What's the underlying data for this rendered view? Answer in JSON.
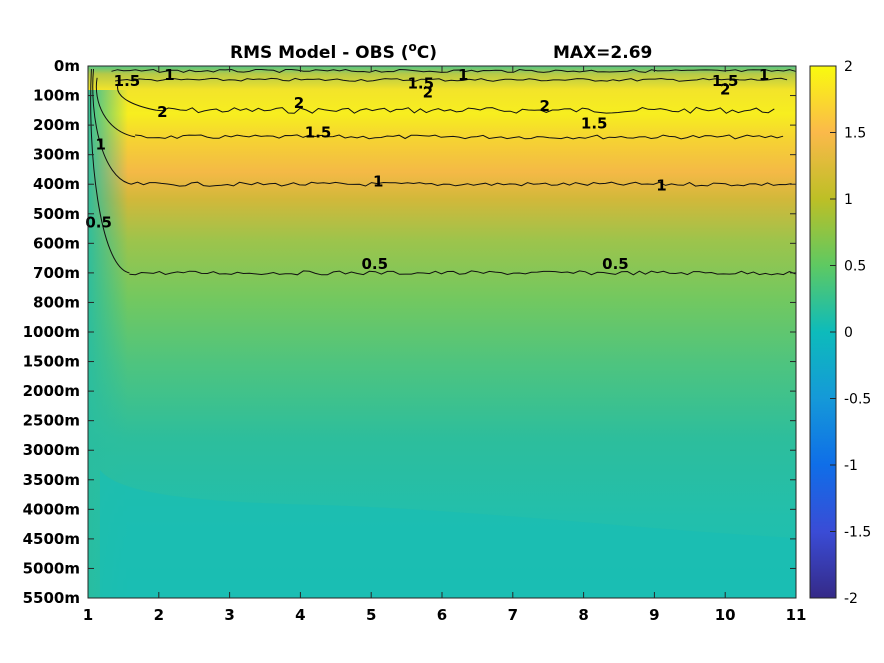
{
  "chart_data": {
    "type": "heatmap",
    "title": "RMS Model - OBS (",
    "title_unit_sup": "o",
    "title_unit": "C)",
    "title_max": "MAX=2.69",
    "x_ticks": [
      "1",
      "2",
      "3",
      "4",
      "5",
      "6",
      "7",
      "8",
      "9",
      "10",
      "11"
    ],
    "xlim": [
      1,
      11
    ],
    "y_ticks": [
      "0m",
      "100m",
      "200m",
      "300m",
      "400m",
      "500m",
      "600m",
      "700m",
      "800m",
      "1000m",
      "1500m",
      "2000m",
      "2500m",
      "3000m",
      "3500m",
      "4000m",
      "4500m",
      "5000m",
      "5500m"
    ],
    "colorbar": {
      "ticks": [
        "2",
        "1.5",
        "1",
        "0.5",
        "0",
        "-0.5",
        "-1",
        "-1.5",
        "-2"
      ],
      "range": [
        -2,
        2
      ]
    },
    "colors": {
      "low": "#352a87",
      "zero": "#0dbbbb",
      "mid": "#80cb58",
      "high": "#f9fb0e",
      "orange": "#fbb94a"
    },
    "contours": [
      {
        "level": "2",
        "x": [
          1.4,
          10.7
        ],
        "depth_index": [
          0.6,
          1.5
        ]
      },
      {
        "level": "1.5",
        "x": [
          1.1,
          10.9
        ],
        "depth_index": [
          0.4,
          2.4
        ]
      },
      {
        "level": "1",
        "x": [
          1.05,
          11
        ],
        "depth_index": [
          0.1,
          4.0
        ]
      },
      {
        "level": "0.5",
        "x": [
          1.02,
          11
        ],
        "depth_index": [
          0.1,
          7.0
        ]
      }
    ],
    "contour_labels": [
      {
        "text": "1.5",
        "x": 1.55,
        "depth_index": 0.5
      },
      {
        "text": "1",
        "x": 2.15,
        "depth_index": 0.3
      },
      {
        "text": "2",
        "x": 2.05,
        "depth_index": 1.55
      },
      {
        "text": "2",
        "x": 3.98,
        "depth_index": 1.25
      },
      {
        "text": "1.5",
        "x": 4.25,
        "depth_index": 2.25
      },
      {
        "text": "1",
        "x": 1.18,
        "depth_index": 2.65
      },
      {
        "text": "0.5",
        "x": 1.15,
        "depth_index": 5.3
      },
      {
        "text": "1",
        "x": 5.1,
        "depth_index": 3.9
      },
      {
        "text": "0.5",
        "x": 5.05,
        "depth_index": 6.7
      },
      {
        "text": "1.5",
        "x": 5.7,
        "depth_index": 0.6
      },
      {
        "text": "2",
        "x": 5.8,
        "depth_index": 0.9
      },
      {
        "text": "1",
        "x": 6.3,
        "depth_index": 0.3
      },
      {
        "text": "2",
        "x": 7.45,
        "depth_index": 1.35
      },
      {
        "text": "1.5",
        "x": 8.15,
        "depth_index": 1.95
      },
      {
        "text": "1",
        "x": 9.1,
        "depth_index": 4.05
      },
      {
        "text": "0.5",
        "x": 8.45,
        "depth_index": 6.7
      },
      {
        "text": "1.5",
        "x": 10.0,
        "depth_index": 0.5
      },
      {
        "text": "2",
        "x": 10.0,
        "depth_index": 0.8
      },
      {
        "text": "1",
        "x": 10.55,
        "depth_index": 0.3
      }
    ]
  }
}
